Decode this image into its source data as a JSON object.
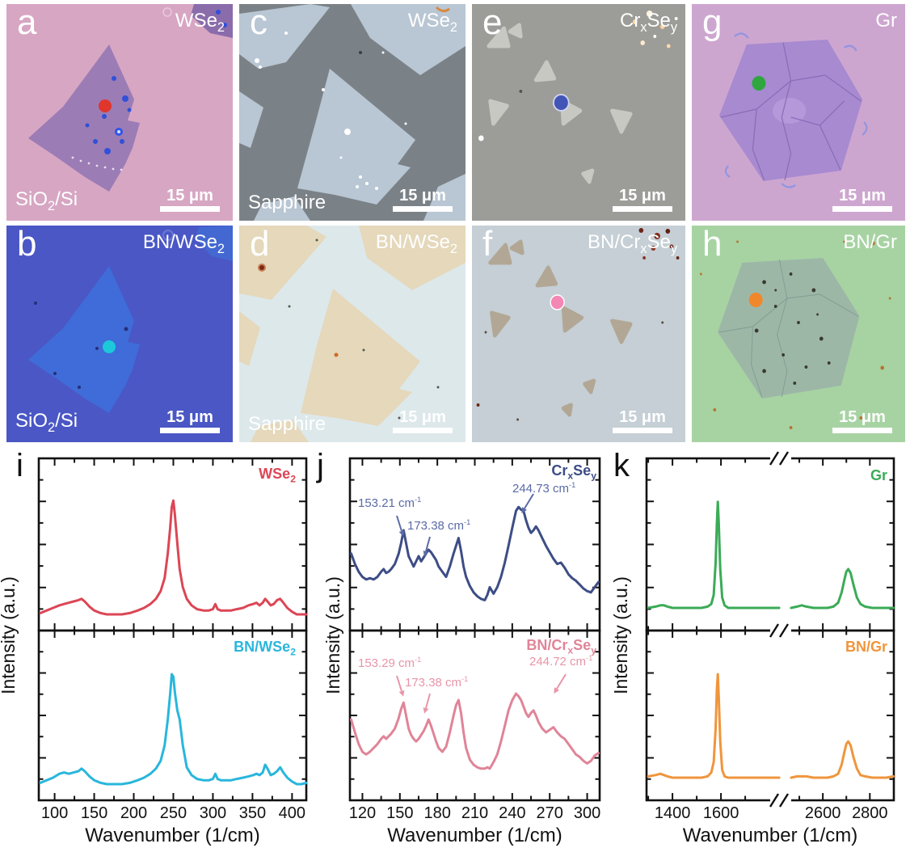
{
  "figure": {
    "background": "#ffffff"
  },
  "micrographs": [
    {
      "letter": "a",
      "material": "WSe_2_",
      "substrate": "SiO_2_/Si",
      "scale_bar": "15 μm",
      "bg": "#d7a6c3",
      "spot_color": "#e0362c"
    },
    {
      "letter": "b",
      "material": "BN/WSe_2_",
      "substrate": "SiO_2_/Si",
      "scale_bar": "15 μm",
      "bg": "#4a57c5",
      "spot_color": "#1bc9da"
    },
    {
      "letter": "c",
      "material": "WSe_2_",
      "substrate": "Sapphire",
      "scale_bar": "15 μm",
      "bg": "#7b8287",
      "spot_color": null
    },
    {
      "letter": "d",
      "material": "BN/WSe_2_",
      "substrate": "Sapphire",
      "scale_bar": "15 μm",
      "bg": "#dde8eb",
      "spot_color": null
    },
    {
      "letter": "e",
      "material": "Cr_x_Se_y_",
      "substrate": "",
      "scale_bar": "15 μm",
      "bg": "#9c9c98",
      "spot_color": "#4254b6"
    },
    {
      "letter": "f",
      "material": "BN/Cr_x_Se_y_",
      "substrate": "",
      "scale_bar": "15 μm",
      "bg": "#c5cfd5",
      "spot_color": "#f487b4"
    },
    {
      "letter": "g",
      "material": "Gr",
      "substrate": "",
      "scale_bar": "15 μm",
      "bg": "#cda6d0",
      "spot_color": "#2fa73e"
    },
    {
      "letter": "h",
      "material": "BN/Gr",
      "substrate": "",
      "scale_bar": "15 μm",
      "bg": "#a7d3a3",
      "spot_color": "#f0882b"
    }
  ],
  "chart_data": [
    {
      "id": "i",
      "panel_letter": "i",
      "type": "line",
      "xlabel": "Wavenumber (1/cm)",
      "ylabel": "Intensity (a.u.)",
      "xlim": [
        80,
        418
      ],
      "xticks": [
        100,
        150,
        200,
        250,
        300,
        350,
        400
      ],
      "xminor": [
        125,
        175,
        225,
        275,
        325,
        375
      ],
      "subplots": [
        {
          "label": "WSe_2_",
          "color": "#dc4655",
          "x": [
            82,
            90,
            98,
            106,
            112,
            118,
            124,
            130,
            134,
            138,
            144,
            150,
            158,
            166,
            175,
            185,
            195,
            205,
            213,
            221,
            228,
            234,
            239,
            243,
            246,
            248,
            250,
            252,
            255,
            258,
            262,
            267,
            273,
            280,
            288,
            295,
            300,
            303,
            306,
            310,
            316,
            323,
            330,
            338,
            345,
            351,
            355,
            359,
            363,
            366,
            369,
            373,
            377,
            381,
            385,
            389,
            394,
            400,
            406,
            412,
            418
          ],
          "y": [
            0.06,
            0.08,
            0.1,
            0.12,
            0.13,
            0.14,
            0.15,
            0.16,
            0.17,
            0.15,
            0.11,
            0.08,
            0.06,
            0.05,
            0.05,
            0.05,
            0.06,
            0.08,
            0.1,
            0.13,
            0.17,
            0.23,
            0.33,
            0.52,
            0.72,
            0.88,
            0.93,
            0.82,
            0.6,
            0.4,
            0.26,
            0.17,
            0.12,
            0.09,
            0.08,
            0.08,
            0.09,
            0.13,
            0.09,
            0.08,
            0.08,
            0.08,
            0.09,
            0.1,
            0.12,
            0.13,
            0.14,
            0.12,
            0.14,
            0.17,
            0.15,
            0.12,
            0.13,
            0.16,
            0.17,
            0.14,
            0.1,
            0.07,
            0.05,
            0.05,
            0.05
          ]
        },
        {
          "label": "BN/WSe_2_",
          "color": "#29b6dc",
          "x": [
            82,
            90,
            98,
            106,
            112,
            118,
            124,
            130,
            134,
            138,
            144,
            150,
            158,
            166,
            175,
            185,
            195,
            205,
            213,
            221,
            228,
            234,
            239,
            243,
            246,
            248,
            250,
            252,
            255,
            258,
            262,
            267,
            273,
            280,
            288,
            295,
            300,
            303,
            306,
            310,
            316,
            323,
            330,
            338,
            345,
            351,
            355,
            359,
            363,
            366,
            369,
            373,
            377,
            381,
            385,
            389,
            394,
            400,
            406,
            412,
            418
          ],
          "y": [
            0.06,
            0.08,
            0.1,
            0.13,
            0.14,
            0.13,
            0.14,
            0.15,
            0.17,
            0.15,
            0.11,
            0.08,
            0.06,
            0.05,
            0.05,
            0.05,
            0.06,
            0.08,
            0.1,
            0.13,
            0.17,
            0.23,
            0.35,
            0.55,
            0.75,
            0.9,
            0.88,
            0.76,
            0.62,
            0.55,
            0.35,
            0.18,
            0.12,
            0.09,
            0.08,
            0.08,
            0.09,
            0.13,
            0.09,
            0.08,
            0.08,
            0.08,
            0.09,
            0.1,
            0.11,
            0.12,
            0.13,
            0.12,
            0.14,
            0.2,
            0.17,
            0.12,
            0.13,
            0.15,
            0.18,
            0.14,
            0.1,
            0.07,
            0.05,
            0.05,
            0.06
          ]
        }
      ]
    },
    {
      "id": "j",
      "panel_letter": "j",
      "type": "line",
      "xlabel": "Wavenumber (1/cm)",
      "ylabel": "Intensity (a.u.)",
      "xlim": [
        110,
        310
      ],
      "xticks": [
        120,
        150,
        180,
        210,
        240,
        270,
        300
      ],
      "xminor": [
        135,
        165,
        195,
        225,
        255,
        285
      ],
      "subplots": [
        {
          "label": "Cr_x_Se_y_",
          "color": "#3d4d85",
          "ann_color": "#5b6ba6",
          "x": [
            111,
            114,
            117,
            120,
            123,
            126,
            129,
            132,
            135,
            137,
            139,
            141,
            143,
            146,
            149,
            151,
            153,
            155,
            157,
            159,
            161,
            163,
            165,
            167,
            169,
            171,
            173,
            175,
            177,
            179,
            181,
            184,
            187,
            190,
            193,
            195,
            197,
            199,
            201,
            203,
            206,
            209,
            212,
            215,
            218,
            220,
            222,
            225,
            228,
            231,
            234,
            237,
            240,
            243,
            245,
            247,
            249,
            251,
            253,
            255,
            257,
            259,
            261,
            264,
            267,
            270,
            273,
            276,
            279,
            282,
            285,
            288,
            291,
            294,
            297,
            300,
            303,
            306,
            309
          ],
          "y": [
            0.52,
            0.44,
            0.38,
            0.34,
            0.32,
            0.33,
            0.32,
            0.34,
            0.38,
            0.4,
            0.37,
            0.38,
            0.4,
            0.44,
            0.52,
            0.6,
            0.7,
            0.6,
            0.5,
            0.46,
            0.42,
            0.46,
            0.5,
            0.46,
            0.49,
            0.52,
            0.55,
            0.53,
            0.5,
            0.47,
            0.42,
            0.38,
            0.34,
            0.42,
            0.52,
            0.58,
            0.64,
            0.54,
            0.42,
            0.34,
            0.27,
            0.22,
            0.19,
            0.17,
            0.16,
            0.2,
            0.26,
            0.21,
            0.26,
            0.34,
            0.45,
            0.58,
            0.72,
            0.85,
            0.88,
            0.86,
            0.85,
            0.78,
            0.72,
            0.68,
            0.7,
            0.73,
            0.7,
            0.64,
            0.58,
            0.53,
            0.48,
            0.44,
            0.45,
            0.41,
            0.36,
            0.33,
            0.31,
            0.28,
            0.25,
            0.23,
            0.22,
            0.26,
            0.3
          ],
          "annotations": [
            {
              "text": "153.21 cm^-1^",
              "arrow": [
                491,
                638,
                497,
                657
              ]
            },
            {
              "text": "173.38 cm^-1^",
              "arrow": [
                532,
                664,
                527,
                682
              ]
            },
            {
              "text": "244.73 cm^-1^",
              "arrow": [
                660,
                611,
                649,
                629
              ]
            }
          ]
        },
        {
          "label": "BN/Cr_x_Se_y_",
          "color": "#e08498",
          "ann_color": "#e895a8",
          "x": [
            111,
            114,
            117,
            120,
            123,
            126,
            129,
            132,
            135,
            137,
            139,
            141,
            143,
            146,
            149,
            151,
            153,
            155,
            157,
            159,
            161,
            163,
            165,
            167,
            169,
            171,
            173,
            175,
            177,
            179,
            181,
            184,
            187,
            190,
            193,
            195,
            197,
            199,
            201,
            203,
            206,
            209,
            212,
            215,
            218,
            220,
            222,
            225,
            228,
            231,
            234,
            237,
            240,
            243,
            245,
            247,
            249,
            251,
            253,
            255,
            257,
            259,
            261,
            264,
            267,
            270,
            273,
            276,
            279,
            282,
            285,
            288,
            291,
            294,
            297,
            300,
            303,
            306,
            309
          ],
          "y": [
            0.55,
            0.45,
            0.36,
            0.3,
            0.28,
            0.3,
            0.33,
            0.36,
            0.4,
            0.42,
            0.4,
            0.42,
            0.44,
            0.48,
            0.56,
            0.63,
            0.68,
            0.58,
            0.48,
            0.43,
            0.4,
            0.38,
            0.4,
            0.43,
            0.46,
            0.5,
            0.55,
            0.5,
            0.44,
            0.38,
            0.33,
            0.3,
            0.34,
            0.45,
            0.58,
            0.66,
            0.7,
            0.6,
            0.45,
            0.33,
            0.24,
            0.2,
            0.18,
            0.17,
            0.17,
            0.18,
            0.17,
            0.22,
            0.28,
            0.38,
            0.5,
            0.62,
            0.7,
            0.75,
            0.73,
            0.7,
            0.65,
            0.6,
            0.57,
            0.6,
            0.62,
            0.58,
            0.53,
            0.48,
            0.45,
            0.47,
            0.49,
            0.45,
            0.42,
            0.4,
            0.36,
            0.32,
            0.28,
            0.26,
            0.23,
            0.21,
            0.23,
            0.27,
            0.29
          ],
          "annotations": [
            {
              "text": "153.29 cm^-1^",
              "arrow": [
                491,
                836,
                497,
                855
              ]
            },
            {
              "text": "173.38 cm^-1^",
              "arrow": [
                532,
                858,
                527,
                876
              ]
            },
            {
              "text": "244.72 cm^-1^",
              "arrow": [
                700,
                834,
                689,
                852
              ]
            }
          ]
        }
      ]
    },
    {
      "id": "k",
      "panel_letter": "k",
      "type": "line",
      "broken_axis": true,
      "xlabel": "Wavenumber (1/cm)",
      "ylabel": "Intensity (a.u.)",
      "segments": [
        {
          "xlim": [
            1293,
            1843
          ],
          "xticks": [
            1400,
            1600
          ],
          "xminor": [
            1300,
            1500,
            1700
          ]
        },
        {
          "xlim": [
            2462,
            2902
          ],
          "xticks": [
            2600,
            2800
          ],
          "xminor": [
            2500,
            2700
          ]
        }
      ],
      "subplots": [
        {
          "label": "Gr",
          "color": "#3bab57",
          "x1": [
            1300,
            1330,
            1350,
            1365,
            1380,
            1400,
            1430,
            1460,
            1490,
            1520,
            1545,
            1560,
            1570,
            1578,
            1583,
            1587,
            1591,
            1597,
            1605,
            1615,
            1630,
            1660,
            1700,
            1750,
            1800,
            1840
          ],
          "y1": [
            0.1,
            0.11,
            0.12,
            0.12,
            0.11,
            0.1,
            0.1,
            0.1,
            0.1,
            0.1,
            0.11,
            0.13,
            0.2,
            0.45,
            0.75,
            0.92,
            0.75,
            0.4,
            0.18,
            0.12,
            0.1,
            0.1,
            0.1,
            0.1,
            0.1,
            0.1
          ],
          "x2": [
            2465,
            2490,
            2510,
            2530,
            2560,
            2590,
            2620,
            2645,
            2665,
            2680,
            2692,
            2700,
            2708,
            2718,
            2730,
            2745,
            2760,
            2780,
            2810,
            2840,
            2870,
            2900
          ],
          "y2": [
            0.1,
            0.11,
            0.12,
            0.11,
            0.1,
            0.1,
            0.1,
            0.11,
            0.14,
            0.22,
            0.32,
            0.38,
            0.4,
            0.37,
            0.28,
            0.18,
            0.13,
            0.11,
            0.1,
            0.1,
            0.1,
            0.1
          ]
        },
        {
          "label": "BN/Gr",
          "color": "#f0953c",
          "x1": [
            1300,
            1330,
            1350,
            1365,
            1380,
            1400,
            1430,
            1460,
            1490,
            1520,
            1545,
            1560,
            1570,
            1578,
            1583,
            1587,
            1591,
            1597,
            1605,
            1615,
            1630,
            1660,
            1700,
            1750,
            1800,
            1840
          ],
          "y1": [
            0.11,
            0.12,
            0.13,
            0.12,
            0.11,
            0.1,
            0.1,
            0.1,
            0.1,
            0.1,
            0.11,
            0.14,
            0.22,
            0.48,
            0.78,
            0.9,
            0.72,
            0.38,
            0.16,
            0.11,
            0.1,
            0.1,
            0.1,
            0.1,
            0.1,
            0.1
          ],
          "x2": [
            2465,
            2490,
            2510,
            2530,
            2560,
            2590,
            2620,
            2645,
            2665,
            2680,
            2692,
            2700,
            2708,
            2718,
            2730,
            2745,
            2760,
            2780,
            2810,
            2840,
            2870,
            2900
          ],
          "y2": [
            0.1,
            0.11,
            0.11,
            0.11,
            0.1,
            0.1,
            0.1,
            0.11,
            0.13,
            0.2,
            0.3,
            0.36,
            0.38,
            0.35,
            0.26,
            0.17,
            0.12,
            0.11,
            0.1,
            0.1,
            0.1,
            0.11
          ]
        }
      ]
    }
  ]
}
